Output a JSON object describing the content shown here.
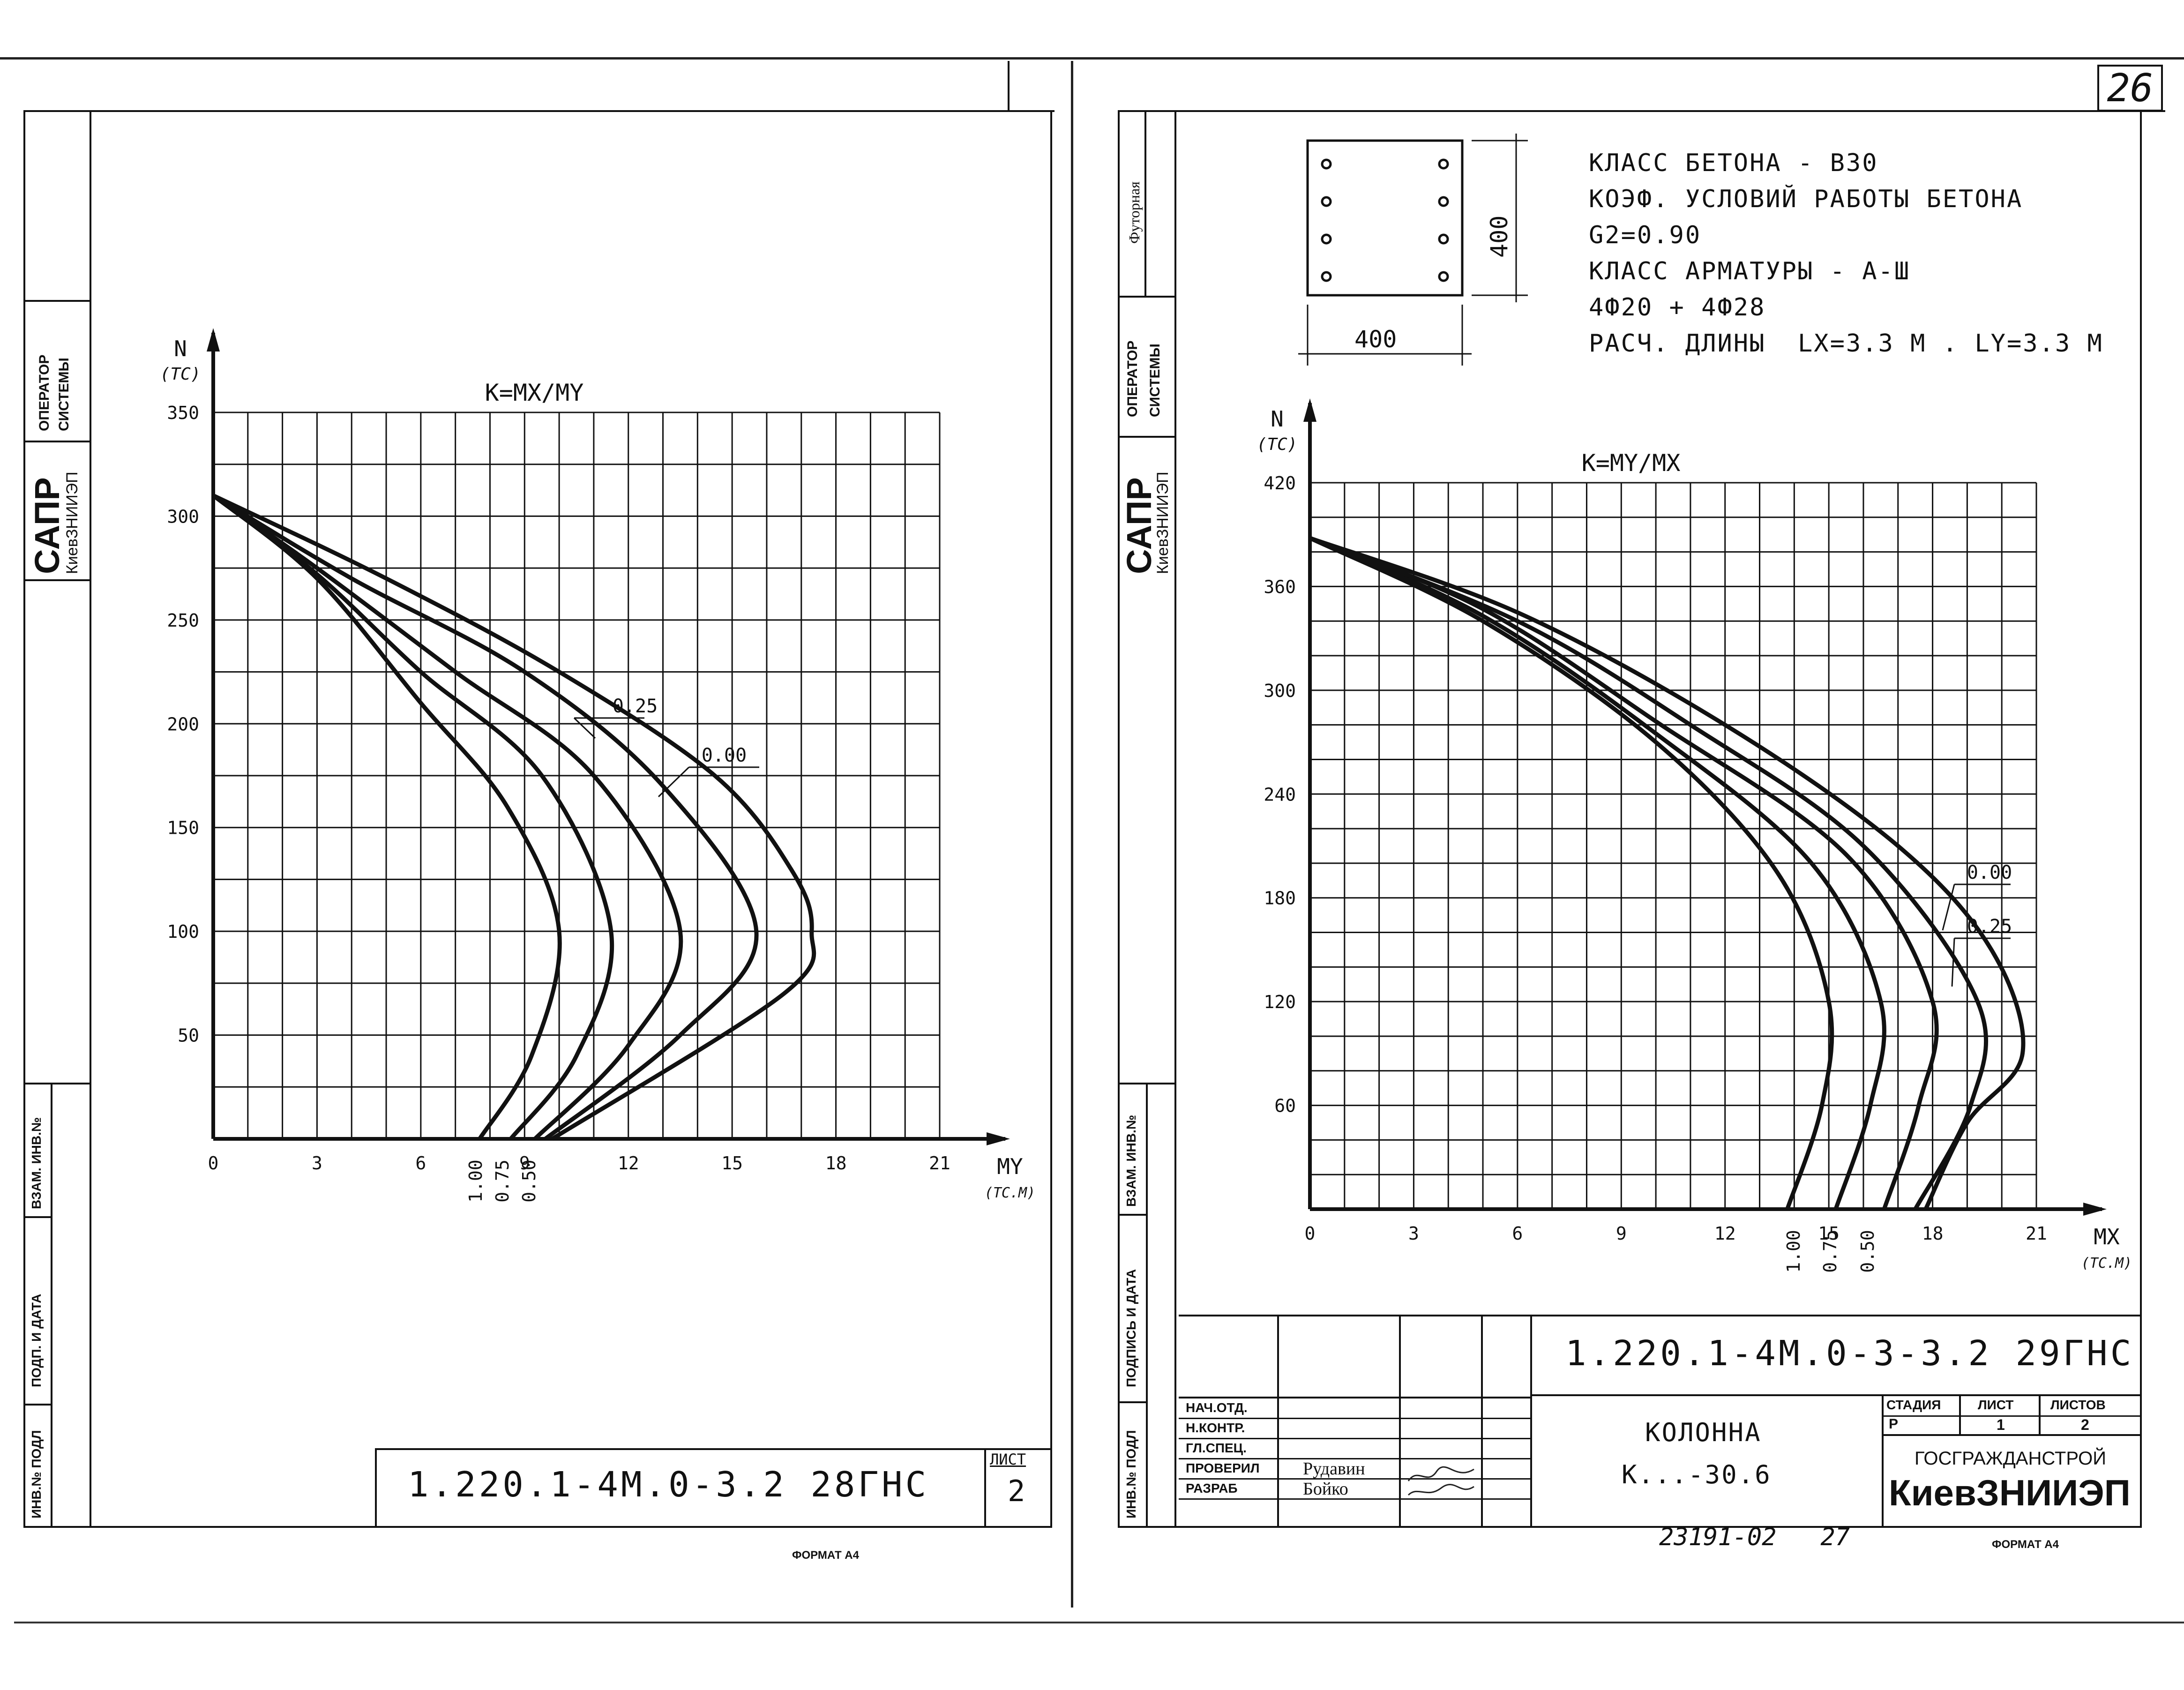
{
  "page_number": "26",
  "left_sheet": {
    "stamp_labels": [
      "ОПЕРАТОР",
      "СИСТЕМЫ"
    ],
    "sapr": "САПР",
    "org_vertical": "КиевЗНИИЭП",
    "margin_labels": [
      "ВЗАМ. ИНВ.№",
      "ПОДП. И ДАТА",
      "ИНВ.№ ПОДЛ"
    ],
    "code": "1.220.1-4M.0-3.2 28ГНС",
    "sheet_label": "ЛИСТ",
    "sheet_number": "2",
    "format": "ФОРМАТ А4"
  },
  "right_sheet": {
    "stamp_labels": [
      "ОПЕРАТОР",
      "СИСТЕМЫ"
    ],
    "futornaya": "Футорная",
    "sapr": "САПР",
    "org_vertical": "КиевЗНИИЭП",
    "margin_labels": [
      "ВЗАМ. ИНВ.№",
      "ПОДПИСЬ И ДАТА",
      "ИНВ.№ ПОДЛ"
    ],
    "section": {
      "width_label": "400",
      "height_label": "400"
    },
    "specs": [
      "КЛАСС БЕТОНА - В30",
      "КОЭФ. УСЛОВИЙ РАБОТЫ БЕТОНА",
      "G2=0.90",
      "КЛАСС АРМАТУРЫ - А-Ш",
      "4Ф20 + 4Ф28",
      "РАСЧ. ДЛИНЫ  LX=3.3 M . LY=3.3 M"
    ],
    "title_block": {
      "code": "1.220.1-4M.0-3-3.2 29ГНС",
      "roles": [
        "НАЧ.ОТД.",
        "Н.КОНТР.",
        "ГЛ.СПЕЦ.",
        "ПРОВЕРИЛ",
        "РАЗРАБ"
      ],
      "names": [
        "",
        "",
        "",
        "Рудавин",
        "Бойко"
      ],
      "item_name": "КОЛОННА",
      "item_mark": "К...-30.6",
      "stage_label": "СТАДИЯ",
      "sheet_label": "ЛИСТ",
      "sheets_label": "ЛИСТОВ",
      "stage": "Р",
      "sheet": "1",
      "sheets": "2",
      "org1": "ГОСГРАЖДАНСТРОЙ",
      "org2": "КиевЗНИИЭП"
    },
    "bottom_number": "23191-02   27",
    "format": "ФОРМАТ А4"
  },
  "chart_data": [
    {
      "type": "line",
      "title": "K=MX/MY",
      "ylabel": "N",
      "yunit": "(TC)",
      "xlabel": "MY",
      "xunit": "(TC.M)",
      "xlim": [
        0,
        21
      ],
      "ylim": [
        0,
        350
      ],
      "xticks": [
        "0",
        "3",
        "6",
        "9",
        "12",
        "15",
        "18",
        "21"
      ],
      "yticks": [
        "50",
        "100",
        "150",
        "200",
        "250",
        "300",
        "350"
      ],
      "curve_labels": [
        "0.25",
        "0.00"
      ],
      "bottom_labels": [
        "1.00",
        "0.75",
        "0.50"
      ],
      "series": [
        {
          "name": "1.00",
          "points": [
            [
              0,
              310
            ],
            [
              3,
              270
            ],
            [
              6,
              210
            ],
            [
              8.5,
              160
            ],
            [
              10,
              100
            ],
            [
              9.2,
              40
            ],
            [
              7.7,
              0
            ]
          ]
        },
        {
          "name": "0.75",
          "points": [
            [
              0,
              310
            ],
            [
              3,
              272
            ],
            [
              6,
              225
            ],
            [
              9.5,
              175
            ],
            [
              11.5,
              100
            ],
            [
              10.5,
              40
            ],
            [
              8.6,
              0
            ]
          ]
        },
        {
          "name": "0.50",
          "points": [
            [
              0,
              310
            ],
            [
              3,
              275
            ],
            [
              7,
              225
            ],
            [
              11,
              175
            ],
            [
              13.5,
              100
            ],
            [
              12,
              45
            ],
            [
              9.3,
              0
            ]
          ]
        },
        {
          "name": "0.25",
          "points": [
            [
              0,
              310
            ],
            [
              4,
              270
            ],
            [
              9,
              225
            ],
            [
              13,
              170
            ],
            [
              15.7,
              100
            ],
            [
              13.5,
              50
            ],
            [
              9.6,
              0
            ]
          ]
        },
        {
          "name": "0.00",
          "points": [
            [
              0,
              310
            ],
            [
              5,
              270
            ],
            [
              10,
              225
            ],
            [
              14.5,
              175
            ],
            [
              16.7,
              130
            ],
            [
              17.3,
              100
            ],
            [
              16.5,
              70
            ],
            [
              9.8,
              0
            ]
          ]
        }
      ]
    },
    {
      "type": "line",
      "title": "K=MY/MX",
      "ylabel": "N",
      "yunit": "(TC)",
      "xlabel": "MX",
      "xunit": "(TC.M)",
      "xlim": [
        0,
        21
      ],
      "ylim": [
        0,
        420
      ],
      "xticks": [
        "0",
        "3",
        "6",
        "9",
        "12",
        "15",
        "18",
        "21"
      ],
      "yticks": [
        "60",
        "120",
        "180",
        "240",
        "300",
        "360",
        "420"
      ],
      "curve_labels": [
        "0.00",
        "0.25"
      ],
      "bottom_labels": [
        "1.00",
        "0.75",
        "0.50"
      ],
      "series": [
        {
          "name": "1.00",
          "points": [
            [
              0,
              388
            ],
            [
              5,
              340
            ],
            [
              10,
              270
            ],
            [
              13.5,
              195
            ],
            [
              15,
              120
            ],
            [
              14.8,
              60
            ],
            [
              13.8,
              0
            ]
          ]
        },
        {
          "name": "0.75",
          "points": [
            [
              0,
              388
            ],
            [
              5,
              343
            ],
            [
              10,
              275
            ],
            [
              14.5,
              200
            ],
            [
              16.5,
              120
            ],
            [
              16.2,
              60
            ],
            [
              15.2,
              0
            ]
          ]
        },
        {
          "name": "0.50",
          "points": [
            [
              0,
              388
            ],
            [
              5,
              347
            ],
            [
              10,
              282
            ],
            [
              15.5,
              205
            ],
            [
              18,
              120
            ],
            [
              17.6,
              60
            ],
            [
              16.6,
              0
            ]
          ]
        },
        {
          "name": "0.25",
          "points": [
            [
              0,
              388
            ],
            [
              6,
              340
            ],
            [
              11,
              280
            ],
            [
              16,
              210
            ],
            [
              19.3,
              120
            ],
            [
              19.1,
              60
            ],
            [
              17.5,
              0
            ]
          ]
        },
        {
          "name": "0.00",
          "points": [
            [
              0,
              388
            ],
            [
              6,
              345
            ],
            [
              12,
              280
            ],
            [
              17,
              210
            ],
            [
              19.7,
              150
            ],
            [
              20.6,
              90
            ],
            [
              19,
              50
            ],
            [
              17.8,
              0
            ]
          ]
        }
      ]
    }
  ]
}
